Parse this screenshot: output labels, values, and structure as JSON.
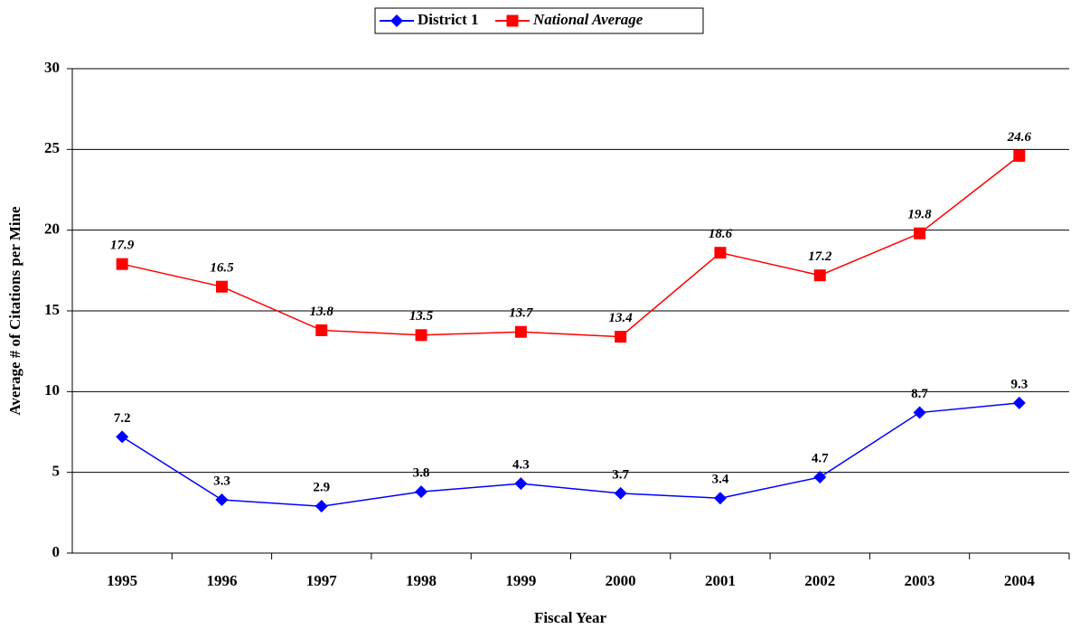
{
  "chart_data": {
    "type": "line",
    "x_label": "Fiscal Year",
    "y_label": "Average # of Citations per Mine",
    "categories": [
      "1995",
      "1996",
      "1997",
      "1998",
      "1999",
      "2000",
      "2001",
      "2002",
      "2003",
      "2004"
    ],
    "series": [
      {
        "name": "District 1",
        "color": "#0000ff",
        "marker": "diamond",
        "italic": false,
        "values": [
          7.2,
          3.3,
          2.9,
          3.8,
          4.3,
          3.7,
          3.4,
          4.7,
          8.7,
          9.3
        ]
      },
      {
        "name": "National Average",
        "color": "#ff0000",
        "marker": "square",
        "italic": true,
        "values": [
          17.9,
          16.5,
          13.8,
          13.5,
          13.7,
          13.4,
          18.6,
          17.2,
          19.8,
          24.6
        ]
      }
    ],
    "ylim": [
      0,
      30
    ],
    "yticks": [
      0,
      5,
      10,
      15,
      20,
      25,
      30
    ],
    "grid": true,
    "legend": "top"
  }
}
